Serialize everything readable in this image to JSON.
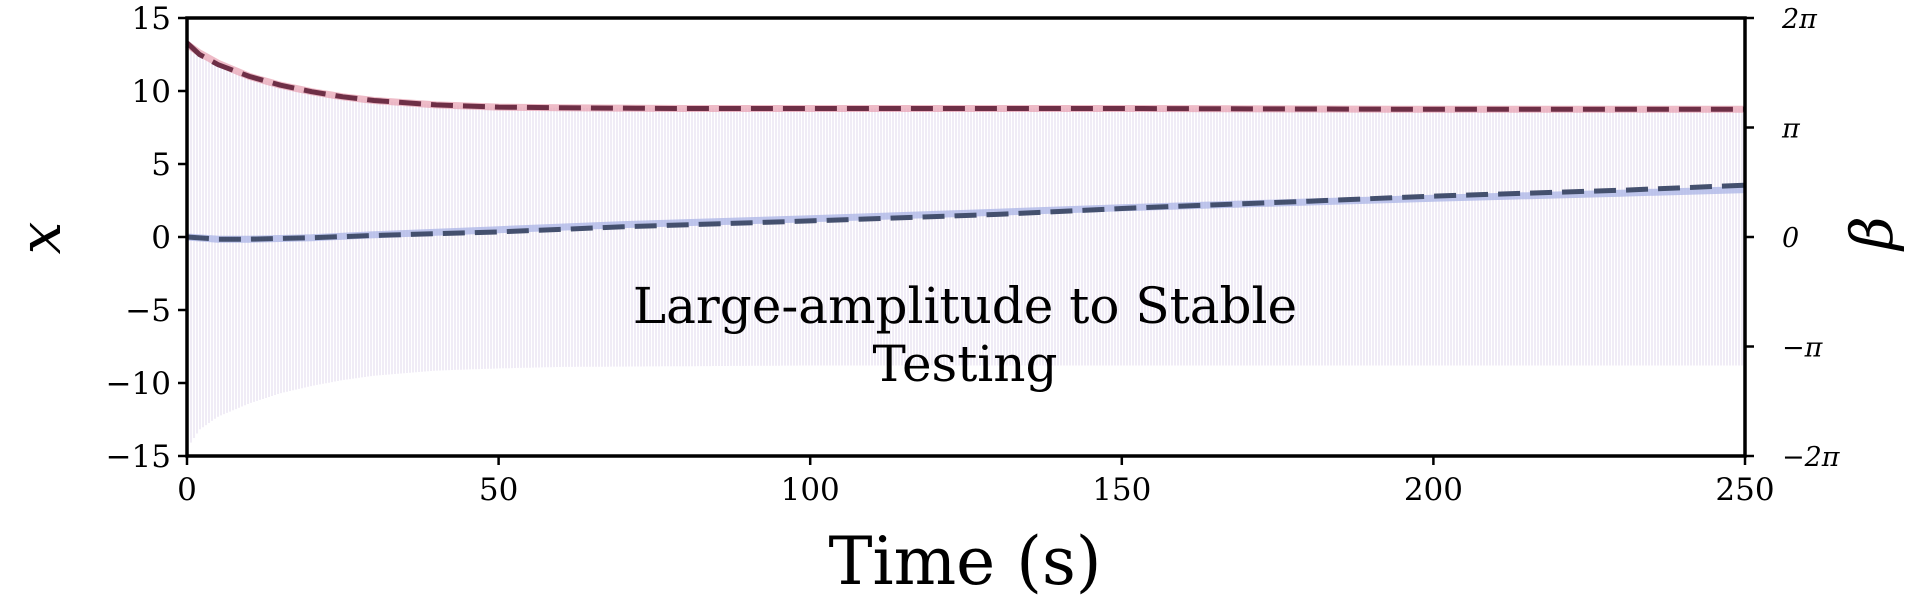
{
  "chart_data": {
    "type": "line",
    "title": "",
    "annotation": [
      "Large-amplitude to Stable",
      "Testing"
    ],
    "xlabel": "Time (s)",
    "ylabel": "x",
    "ylabel_right": "β",
    "xlim": [
      0,
      250
    ],
    "ylim": [
      -15,
      15
    ],
    "ylim_right": [
      -6.2832,
      6.2832
    ],
    "grid": false,
    "legend": "none",
    "x_ticks": [
      0,
      50,
      100,
      150,
      200,
      250
    ],
    "x_tick_labels": [
      "0",
      "50",
      "100",
      "150",
      "200",
      "250"
    ],
    "y_ticks": [
      -15,
      -10,
      -5,
      0,
      5,
      10,
      15
    ],
    "y_tick_labels": [
      "−15",
      "−10",
      "−5",
      "0",
      "5",
      "10",
      "15"
    ],
    "y_right_ticks": [
      -6.2832,
      -3.1416,
      0,
      3.1416,
      6.2832
    ],
    "y_right_tick_labels": [
      "−2π",
      "−π",
      "0",
      "π",
      "2π"
    ],
    "oscillation_band": {
      "color": "#c9b8e0",
      "x": [
        0,
        2,
        5,
        10,
        15,
        20,
        25,
        30,
        40,
        50,
        60,
        80,
        100,
        150,
        200,
        250
      ],
      "upper": [
        13.3,
        12.5,
        11.8,
        11.0,
        10.4,
        9.95,
        9.6,
        9.35,
        9.05,
        8.9,
        8.85,
        8.8,
        8.8,
        8.8,
        8.8,
        8.8
      ],
      "lower": [
        -14.5,
        -13.2,
        -12.3,
        -11.4,
        -10.7,
        -10.2,
        -9.8,
        -9.5,
        -9.15,
        -9.0,
        -8.9,
        -8.85,
        -8.8,
        -8.8,
        -8.8,
        -8.8
      ]
    },
    "series": [
      {
        "axis": "left",
        "style": "solid",
        "color": "#e8a4b4",
        "x": [
          0,
          2,
          5,
          10,
          15,
          20,
          25,
          30,
          40,
          50,
          60,
          80,
          100,
          150,
          200,
          250
        ],
        "y": [
          13.2,
          12.6,
          11.9,
          11.0,
          10.4,
          9.95,
          9.6,
          9.35,
          9.05,
          8.9,
          8.85,
          8.8,
          8.8,
          8.8,
          8.75,
          8.75
        ]
      },
      {
        "axis": "left",
        "style": "dashed",
        "color": "#6e2f46",
        "x": [
          0,
          2,
          5,
          10,
          15,
          20,
          25,
          30,
          40,
          50,
          60,
          80,
          100,
          150,
          200,
          250
        ],
        "y": [
          13.3,
          12.5,
          11.8,
          11.0,
          10.4,
          9.95,
          9.6,
          9.35,
          9.05,
          8.9,
          8.85,
          8.8,
          8.8,
          8.8,
          8.75,
          8.75
        ]
      },
      {
        "axis": "left",
        "style": "solid",
        "color": "#aab4e6",
        "x": [
          0,
          5,
          10,
          20,
          30,
          50,
          70,
          100,
          130,
          150,
          180,
          200,
          230,
          250
        ],
        "y": [
          0.0,
          -0.15,
          -0.15,
          -0.05,
          0.15,
          0.5,
          0.85,
          1.25,
          1.7,
          2.0,
          2.4,
          2.65,
          3.0,
          3.25
        ]
      },
      {
        "axis": "left",
        "style": "dashed",
        "color": "#44506e",
        "x": [
          0,
          5,
          10,
          20,
          30,
          50,
          70,
          100,
          130,
          150,
          180,
          200,
          230,
          250
        ],
        "y": [
          0.0,
          -0.15,
          -0.15,
          -0.05,
          0.1,
          0.35,
          0.7,
          1.1,
          1.55,
          1.95,
          2.45,
          2.8,
          3.2,
          3.55
        ]
      }
    ]
  }
}
